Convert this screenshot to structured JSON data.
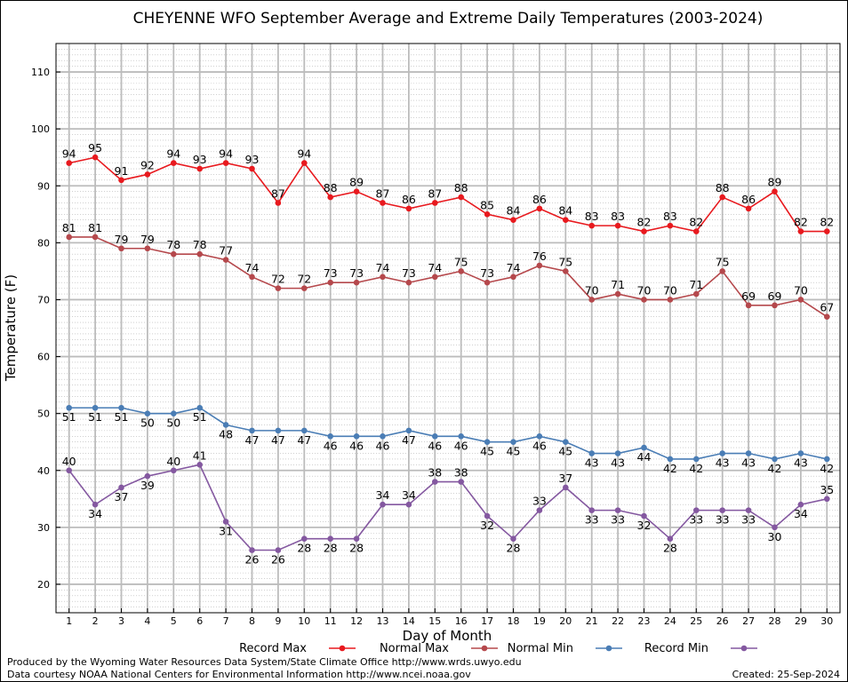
{
  "chart_data": {
    "type": "line",
    "title": "CHEYENNE WFO September Average and Extreme Daily Temperatures (2003-2024)",
    "xlabel": "Day of Month",
    "ylabel": "Temperature (F)",
    "x": [
      1,
      2,
      3,
      4,
      5,
      6,
      7,
      8,
      9,
      10,
      11,
      12,
      13,
      14,
      15,
      16,
      17,
      18,
      19,
      20,
      21,
      22,
      23,
      24,
      25,
      26,
      27,
      28,
      29,
      30
    ],
    "xlim": [
      0.5,
      30.5
    ],
    "ylim": [
      15,
      115
    ],
    "yticks": [
      20,
      30,
      40,
      50,
      60,
      70,
      80,
      90,
      100,
      110
    ],
    "grid": true,
    "legend_position": "bottom",
    "series": [
      {
        "name": "Record Max",
        "color": "#e8191e",
        "values": [
          94,
          95,
          91,
          92,
          94,
          93,
          94,
          93,
          87,
          94,
          88,
          89,
          87,
          86,
          87,
          88,
          85,
          84,
          86,
          84,
          83,
          83,
          82,
          83,
          82,
          88,
          86,
          89,
          82,
          82
        ]
      },
      {
        "name": "Normal Max",
        "color": "#b5484c",
        "values": [
          81,
          81,
          79,
          79,
          78,
          78,
          77,
          74,
          72,
          72,
          73,
          73,
          74,
          73,
          74,
          75,
          73,
          74,
          76,
          75,
          70,
          71,
          70,
          70,
          71,
          75,
          69,
          69,
          70,
          67
        ]
      },
      {
        "name": "Normal Min",
        "color": "#4a7db5",
        "values": [
          51,
          51,
          51,
          50,
          50,
          51,
          48,
          47,
          47,
          47,
          46,
          46,
          46,
          47,
          46,
          46,
          45,
          45,
          46,
          45,
          43,
          43,
          44,
          42,
          42,
          43,
          43,
          42,
          43,
          42
        ]
      },
      {
        "name": "Record Min",
        "color": "#8458a0",
        "values": [
          40,
          34,
          37,
          39,
          40,
          41,
          31,
          26,
          26,
          28,
          28,
          28,
          34,
          34,
          38,
          38,
          32,
          28,
          33,
          37,
          33,
          33,
          32,
          28,
          33,
          33,
          33,
          30,
          34,
          35
        ]
      }
    ]
  },
  "footer": {
    "produced_by": "Produced by the Wyoming Water Resources Data System/State Climate Office http://www.wrds.uwyo.edu",
    "courtesy": "Data courtesy NOAA National Centers for Environmental Information http://www.ncei.noaa.gov",
    "created": "Created:  25-Sep-2024"
  }
}
